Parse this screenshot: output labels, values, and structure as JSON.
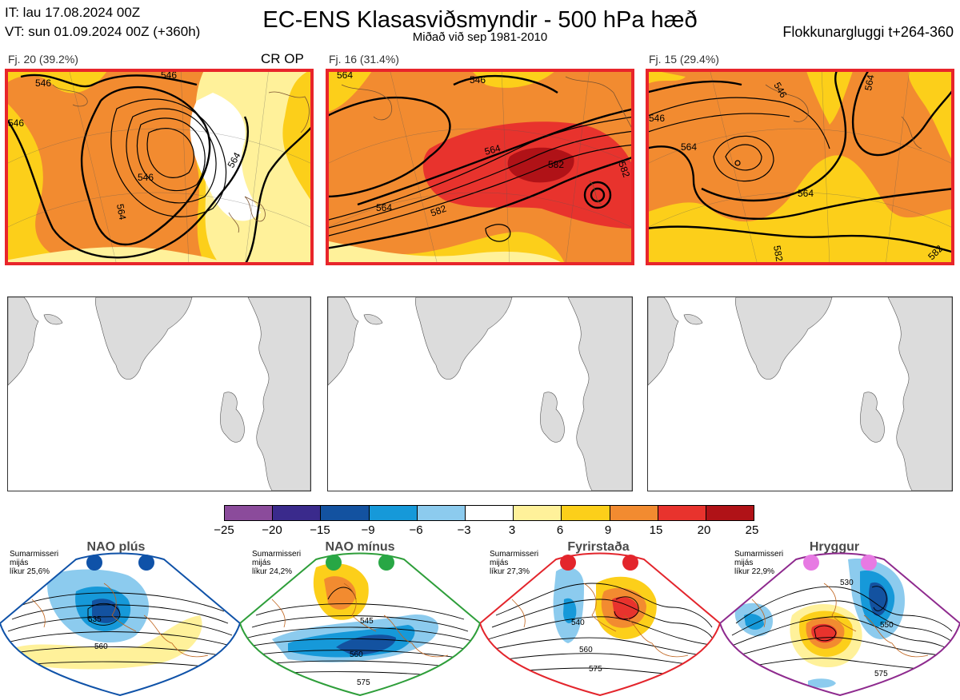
{
  "header": {
    "line1": "IT: lau 17.08.2024 00Z",
    "line2": "VT: sun 01.09.2024 00Z  (+360h)",
    "title": "EC-ENS Klasasviðsmyndir - 500 hPa hæð",
    "subtitle": "Miðað við sep 1981-2010",
    "window": "Flokkunargluggi t+264-360"
  },
  "clusters": [
    {
      "label": "Fj. 20 (39.2%)",
      "tag": "CR OP",
      "contours": [
        "546",
        "546",
        "546",
        "564",
        "564",
        "546"
      ],
      "border": "#e8252b"
    },
    {
      "label": "Fj. 16 (31.4%)",
      "tag": "",
      "contours": [
        "546",
        "564",
        "564",
        "582",
        "582",
        "564",
        "582"
      ],
      "border": "#e8252b"
    },
    {
      "label": "Fj. 15 (29.4%)",
      "tag": "",
      "contours": [
        "546",
        "546",
        "564",
        "564",
        "564",
        "582",
        "582"
      ],
      "border": "#e8252b"
    }
  ],
  "colorbar": {
    "ticks": [
      "−25",
      "−20",
      "−15",
      "−9",
      "−6",
      "−3",
      "3",
      "6",
      "9",
      "15",
      "20",
      "25"
    ],
    "colors": [
      "#8b4b9b",
      "#3a2a8c",
      "#1352a0",
      "#1699d9",
      "#8ccbee",
      "#ffffff",
      "#fff19a",
      "#fccf1a",
      "#f28b30",
      "#e8332d",
      "#b01217"
    ]
  },
  "regimes": [
    {
      "name": "NAO plús",
      "prob_lines": [
        "Sumarmisseri",
        "mijás",
        "líkur 25,6%"
      ],
      "dot_color": "#0f52a8",
      "border": "#0f52a8",
      "contours": [
        "535",
        "560"
      ]
    },
    {
      "name": "NAO mínus",
      "prob_lines": [
        "Sumarmisseri",
        "mijás",
        "líkur 24,2%"
      ],
      "dot_color": "#28a745",
      "border": "#2e9e3a",
      "contours": [
        "545",
        "560",
        "575"
      ]
    },
    {
      "name": "Fyrirstaða",
      "prob_lines": [
        "Sumarmisseri",
        "mijás",
        "líkur 27,3%"
      ],
      "dot_color": "#e3252c",
      "border": "#e3252c",
      "contours": [
        "540",
        "560",
        "575"
      ]
    },
    {
      "name": "Hryggur",
      "prob_lines": [
        "Sumarmisseri",
        "mijás",
        "líkur 22,9%"
      ],
      "dot_color": "#e77ae3",
      "border": "#8e2a8e",
      "contours": [
        "530",
        "550",
        "575"
      ]
    }
  ]
}
